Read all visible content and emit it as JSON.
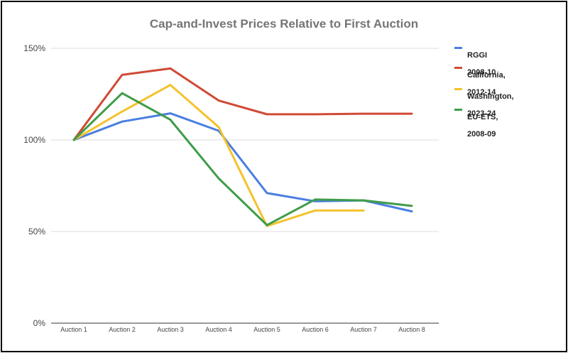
{
  "chart_data": {
    "type": "line",
    "title": "Cap-and-Invest Prices Relative to First Auction",
    "xlabel": "",
    "ylabel": "",
    "categories": [
      "Auction 1",
      "Auction 2",
      "Auction 3",
      "Auction 4",
      "Auction 5",
      "Auction 6",
      "Auction 7",
      "Auction 8"
    ],
    "ylim": [
      0,
      150
    ],
    "yticks": [
      0,
      50,
      100,
      150
    ],
    "ytick_labels": [
      "0%",
      "50%",
      "100%",
      "150%"
    ],
    "grid": true,
    "legend_position": "right",
    "series": [
      {
        "name_line1": "RGGI",
        "name_line2": "2008-10",
        "color": "#4a7fe0",
        "values": [
          100,
          110,
          114.5,
          105,
          71,
          66.5,
          67,
          61
        ]
      },
      {
        "name_line1": "California,",
        "name_line2": "2012-14",
        "color": "#d04a35",
        "values": [
          100,
          135.5,
          139,
          121.5,
          114,
          114,
          114.3,
          114.3
        ]
      },
      {
        "name_line1": "Washington,",
        "name_line2": "2023-24",
        "color": "#f4c22b",
        "values": [
          100,
          115.5,
          130,
          107,
          53,
          61.5,
          61.5,
          null
        ]
      },
      {
        "name_line1": "EU-ETS,",
        "name_line2": "2008-09",
        "color": "#3f9c48",
        "values": [
          100,
          125.5,
          111,
          79,
          53.5,
          67.5,
          67,
          64
        ]
      }
    ]
  }
}
